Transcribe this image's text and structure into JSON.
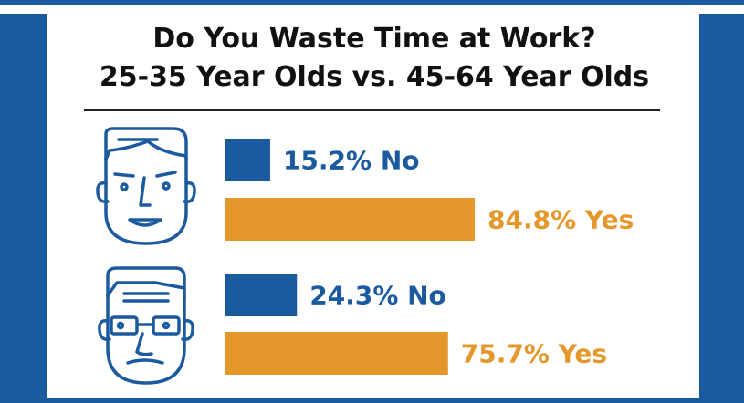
{
  "title": {
    "line1": "Do You Waste Time at Work?",
    "line2": "25-35 Year Olds vs. 45-64 Year Olds"
  },
  "colors": {
    "band": "#1c5aa0",
    "no": "#1c5aa0",
    "yes": "#e4972a",
    "face_stroke": "#1c5aa0"
  },
  "chart_data": {
    "type": "bar",
    "orientation": "horizontal",
    "unit": "%",
    "xlim": [
      0,
      100
    ],
    "groups": [
      {
        "icon": "young-man-face-icon",
        "bars": [
          {
            "value": 15.2,
            "label": "15.2% No",
            "color": "#1c5aa0"
          },
          {
            "value": 84.8,
            "label": "84.8% Yes",
            "color": "#e4972a"
          }
        ]
      },
      {
        "icon": "older-man-with-glasses-face-icon",
        "bars": [
          {
            "value": 24.3,
            "label": "24.3% No",
            "color": "#1c5aa0"
          },
          {
            "value": 75.7,
            "label": "75.7% Yes",
            "color": "#e4972a"
          }
        ]
      }
    ]
  }
}
